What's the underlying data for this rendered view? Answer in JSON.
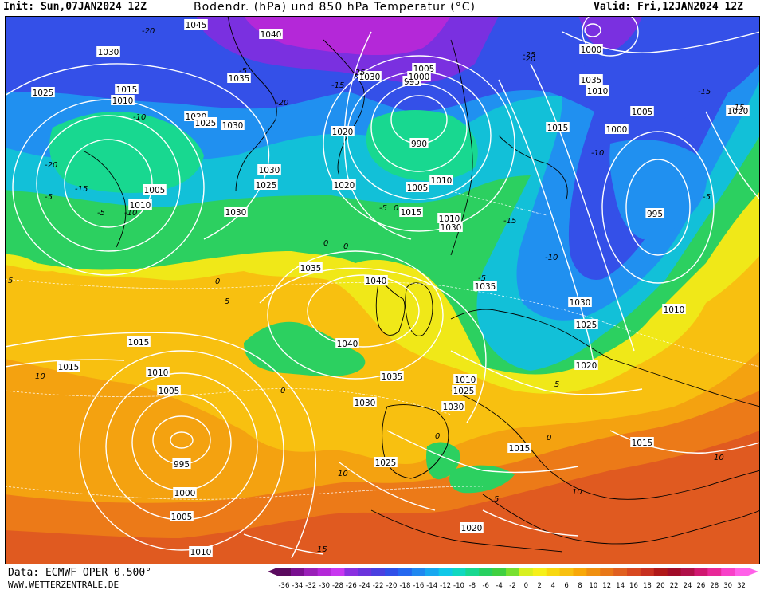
{
  "header": {
    "init": "Init: Sun,07JAN2024 12Z",
    "title": "Bodendr. (hPa) und 850 hPa Temperatur (°C)",
    "valid": "Valid: Fri,12JAN2024 12Z"
  },
  "footer": {
    "data_source": "Data: ECMWF OPER 0.500°",
    "site": "WWW.WETTERZENTRALE.DE"
  },
  "legend": {
    "ticks": [
      "-36",
      "-34",
      "-32",
      "-30",
      "-28",
      "-26",
      "-24",
      "-22",
      "-20",
      "-18",
      "-16",
      "-14",
      "-12",
      "-10",
      "-8",
      "-6",
      "-4",
      "-2",
      "0",
      "2",
      "4",
      "6",
      "8",
      "10",
      "12",
      "14",
      "16",
      "18",
      "20",
      "22",
      "24",
      "26",
      "28",
      "30",
      "32"
    ],
    "colors": [
      "#5a0a5e",
      "#7a1090",
      "#9a20b8",
      "#b428d8",
      "#c837f0",
      "#8a30e0",
      "#6a34dc",
      "#4a40e0",
      "#3050e8",
      "#2468f0",
      "#2088f0",
      "#18a8f0",
      "#10c8e8",
      "#10d8c0",
      "#18d890",
      "#28d060",
      "#40d040",
      "#78e030",
      "#d8f020",
      "#f6f01a",
      "#f8d810",
      "#f8c010",
      "#f8a808",
      "#f09010",
      "#e87818",
      "#e06020",
      "#d84820",
      "#c83020",
      "#b01818",
      "#a00c28",
      "#b01048",
      "#d01870",
      "#e82898",
      "#f840c8",
      "#ff60e8"
    ]
  },
  "map": {
    "pressure_labels": [
      "1045",
      "1040",
      "1030",
      "1025",
      "1015",
      "1010",
      "1035",
      "1030",
      "1020",
      "1025",
      "1030",
      "1005",
      "995",
      "1000",
      "990",
      "1000",
      "1035",
      "1010",
      "1005",
      "1000",
      "1020",
      "1015",
      "1005",
      "1010",
      "1030",
      "1025",
      "1020",
      "1010",
      "1005",
      "1015",
      "1030",
      "1010",
      "1020",
      "1030",
      "995",
      "1040",
      "1035",
      "1035",
      "1010",
      "1030",
      "1025",
      "1015",
      "1040",
      "1015",
      "1010",
      "1035",
      "1020",
      "1005",
      "1030",
      "1010",
      "1030",
      "995",
      "1025",
      "1000",
      "1015",
      "1025",
      "1005",
      "1020",
      "1010",
      "1015"
    ],
    "temperature_labels": [
      "-20",
      "-25",
      "-20",
      "-10",
      "-15",
      "-20",
      "-15",
      "-15",
      "-5",
      "-10",
      "-5",
      "-5",
      "-25",
      "-15",
      "-10",
      "-5",
      "0",
      "0",
      "0",
      "0",
      "5",
      "5",
      "0",
      "5",
      "-10",
      "-5",
      "10",
      "10",
      "10",
      "15",
      "-5",
      "0",
      "0",
      "5",
      "10",
      "-20",
      "-15"
    ]
  }
}
